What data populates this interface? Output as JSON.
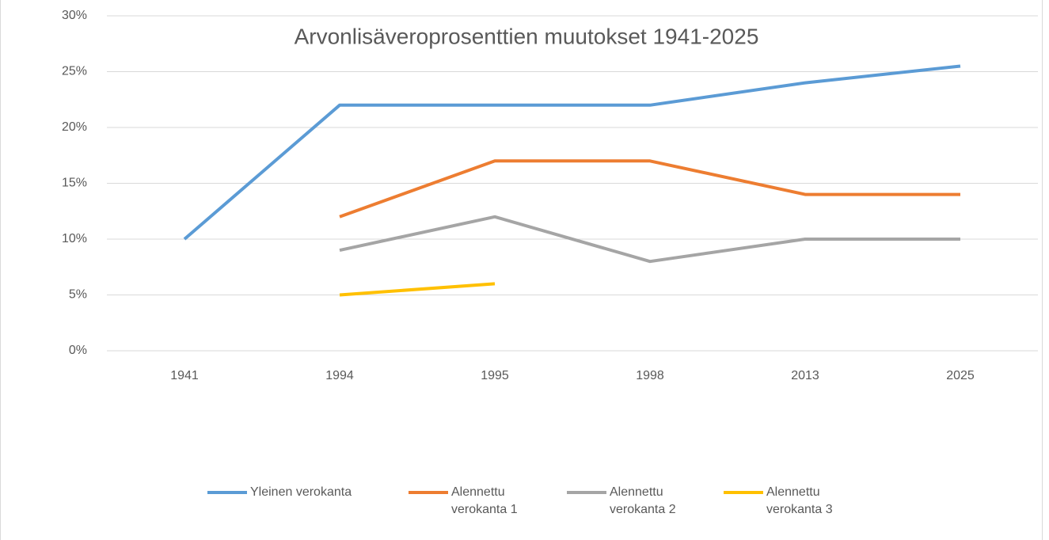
{
  "chart_data": {
    "type": "line",
    "title": "Arvonlisäveroprosenttien muutokset 1941-2025",
    "categories": [
      "1941",
      "1994",
      "1995",
      "1998",
      "2013",
      "2025"
    ],
    "series": [
      {
        "name": "Yleinen verokanta",
        "color": "#5b9bd5",
        "values": [
          10,
          22,
          22,
          22,
          24,
          25.5
        ]
      },
      {
        "name": "Alennettu verokanta 1",
        "color": "#ed7d31",
        "values": [
          null,
          12,
          17,
          17,
          14,
          14
        ]
      },
      {
        "name": "Alennettu verokanta 2",
        "color": "#a5a5a5",
        "values": [
          null,
          9,
          12,
          8,
          10,
          10
        ]
      },
      {
        "name": "Alennettu verokanta 3",
        "color": "#ffc000",
        "values": [
          null,
          5,
          6,
          null,
          null,
          null
        ]
      }
    ],
    "ylim": [
      0,
      30
    ],
    "yticks": [
      {
        "value": 0,
        "label": "0%"
      },
      {
        "value": 5,
        "label": "5%"
      },
      {
        "value": 10,
        "label": "10%"
      },
      {
        "value": 15,
        "label": "15%"
      },
      {
        "value": 20,
        "label": "20%"
      },
      {
        "value": 25,
        "label": "25%"
      },
      {
        "value": 30,
        "label": "30%"
      }
    ],
    "grid": true,
    "legend": "bottom"
  }
}
